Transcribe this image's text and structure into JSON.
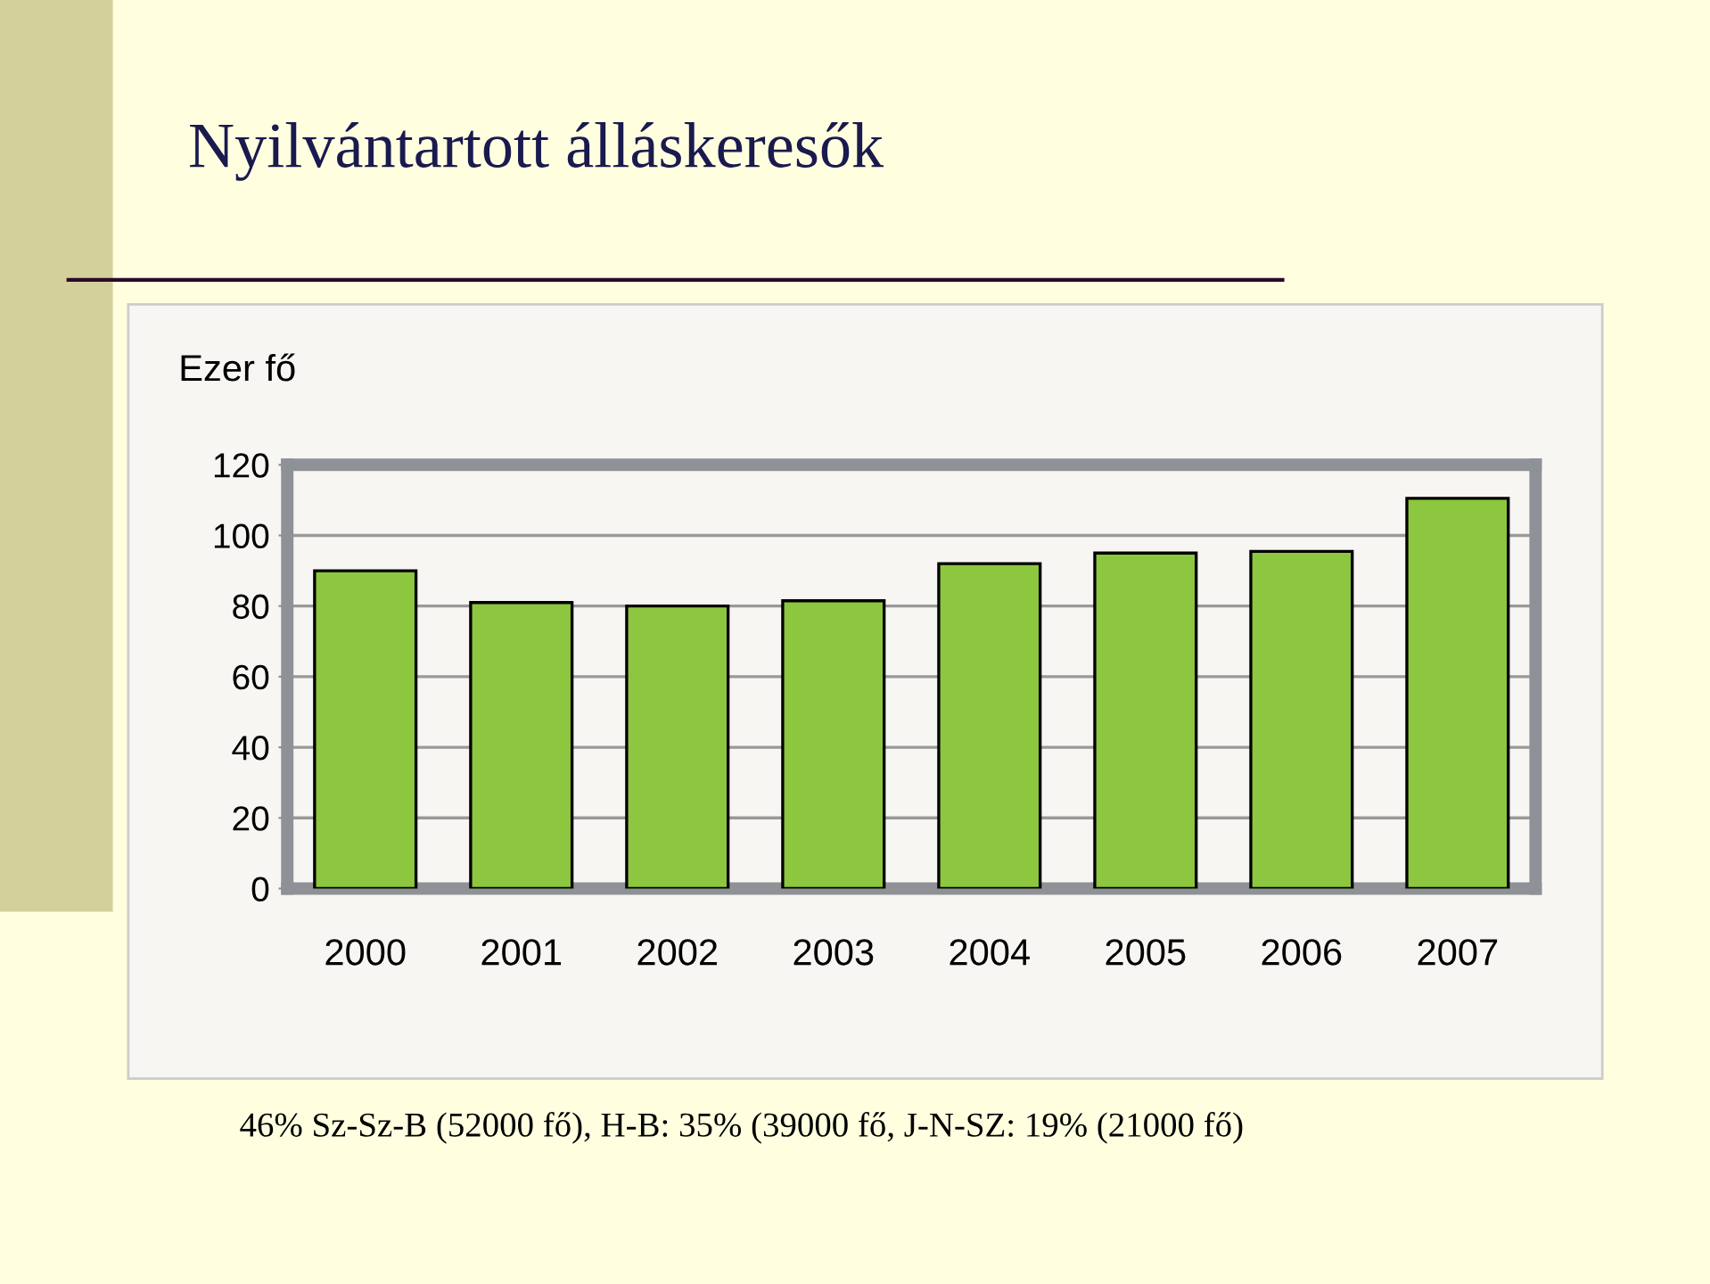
{
  "chart_data": {
    "type": "bar",
    "title": "Nyilvántartott álláskeresők",
    "ylabel": "Ezer fő",
    "categories": [
      "2000",
      "2001",
      "2002",
      "2003",
      "2004",
      "2005",
      "2006",
      "2007"
    ],
    "values": [
      90,
      81,
      80,
      81.5,
      92,
      95,
      95.5,
      110.5
    ],
    "color": "#8dc63f",
    "ylim": [
      0,
      120
    ],
    "yticks": [
      0,
      20,
      40,
      60,
      80,
      100,
      120
    ],
    "grid": "y",
    "annotations": [
      "46% Sz-Sz-B (52000 fő), H-B: 35% (39000 fő, J-N-SZ: 19% (21000 fő)"
    ]
  }
}
